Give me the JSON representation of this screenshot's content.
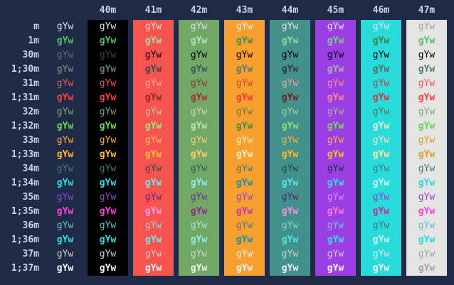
{
  "terminal": {
    "cell_text": "gYw",
    "min_contrast": 0.25,
    "colors": {
      "background": "#1f2a47",
      "label": "#ccd4e2"
    },
    "columns": [
      {
        "label": "",
        "bg": ""
      },
      {
        "label": "40m",
        "bg": "#000000"
      },
      {
        "label": "41m",
        "bg": "#f8534f"
      },
      {
        "label": "42m",
        "bg": "#72a866"
      },
      {
        "label": "43m",
        "bg": "#f7a02f"
      },
      {
        "label": "44m",
        "bg": "#43918b"
      },
      {
        "label": "45m",
        "bg": "#9b3fe4"
      },
      {
        "label": "46m",
        "bg": "#2adbdb"
      },
      {
        "label": "47m",
        "bg": "#e4e4e3"
      }
    ],
    "rows": [
      {
        "label": "m",
        "fg": "#e1e1e0",
        "bold": false
      },
      {
        "label": "1m",
        "fg": "#55bd66",
        "bold": true
      },
      {
        "label": "30m",
        "fg": "#000000",
        "bold": false
      },
      {
        "label": "1;30m",
        "fg": "#5f7a76",
        "bold": true
      },
      {
        "label": "31m",
        "fg": "#f8534f",
        "bold": false
      },
      {
        "label": "1;31m",
        "fg": "#f94144",
        "bold": true
      },
      {
        "label": "32m",
        "fg": "#79ae6d",
        "bold": false
      },
      {
        "label": "1;32m",
        "fg": "#70d455",
        "bold": true
      },
      {
        "label": "33m",
        "fg": "#ffad29",
        "bold": false
      },
      {
        "label": "1;33m",
        "fg": "#ffb929",
        "bold": true
      },
      {
        "label": "34m",
        "fg": "#3d7a80",
        "bold": false
      },
      {
        "label": "1;34m",
        "fg": "#2fdde4",
        "bold": true
      },
      {
        "label": "35m",
        "fg": "#9b3fe4",
        "bold": false
      },
      {
        "label": "1;35m",
        "fg": "#f944d6",
        "bold": true
      },
      {
        "label": "36m",
        "fg": "#5bc4cb",
        "bold": false
      },
      {
        "label": "1;36m",
        "fg": "#2fdde4",
        "bold": true
      },
      {
        "label": "37m",
        "fg": "#c9cdd0",
        "bold": false
      },
      {
        "label": "1;37m",
        "fg": "#eef2f2",
        "bold": true
      }
    ]
  }
}
